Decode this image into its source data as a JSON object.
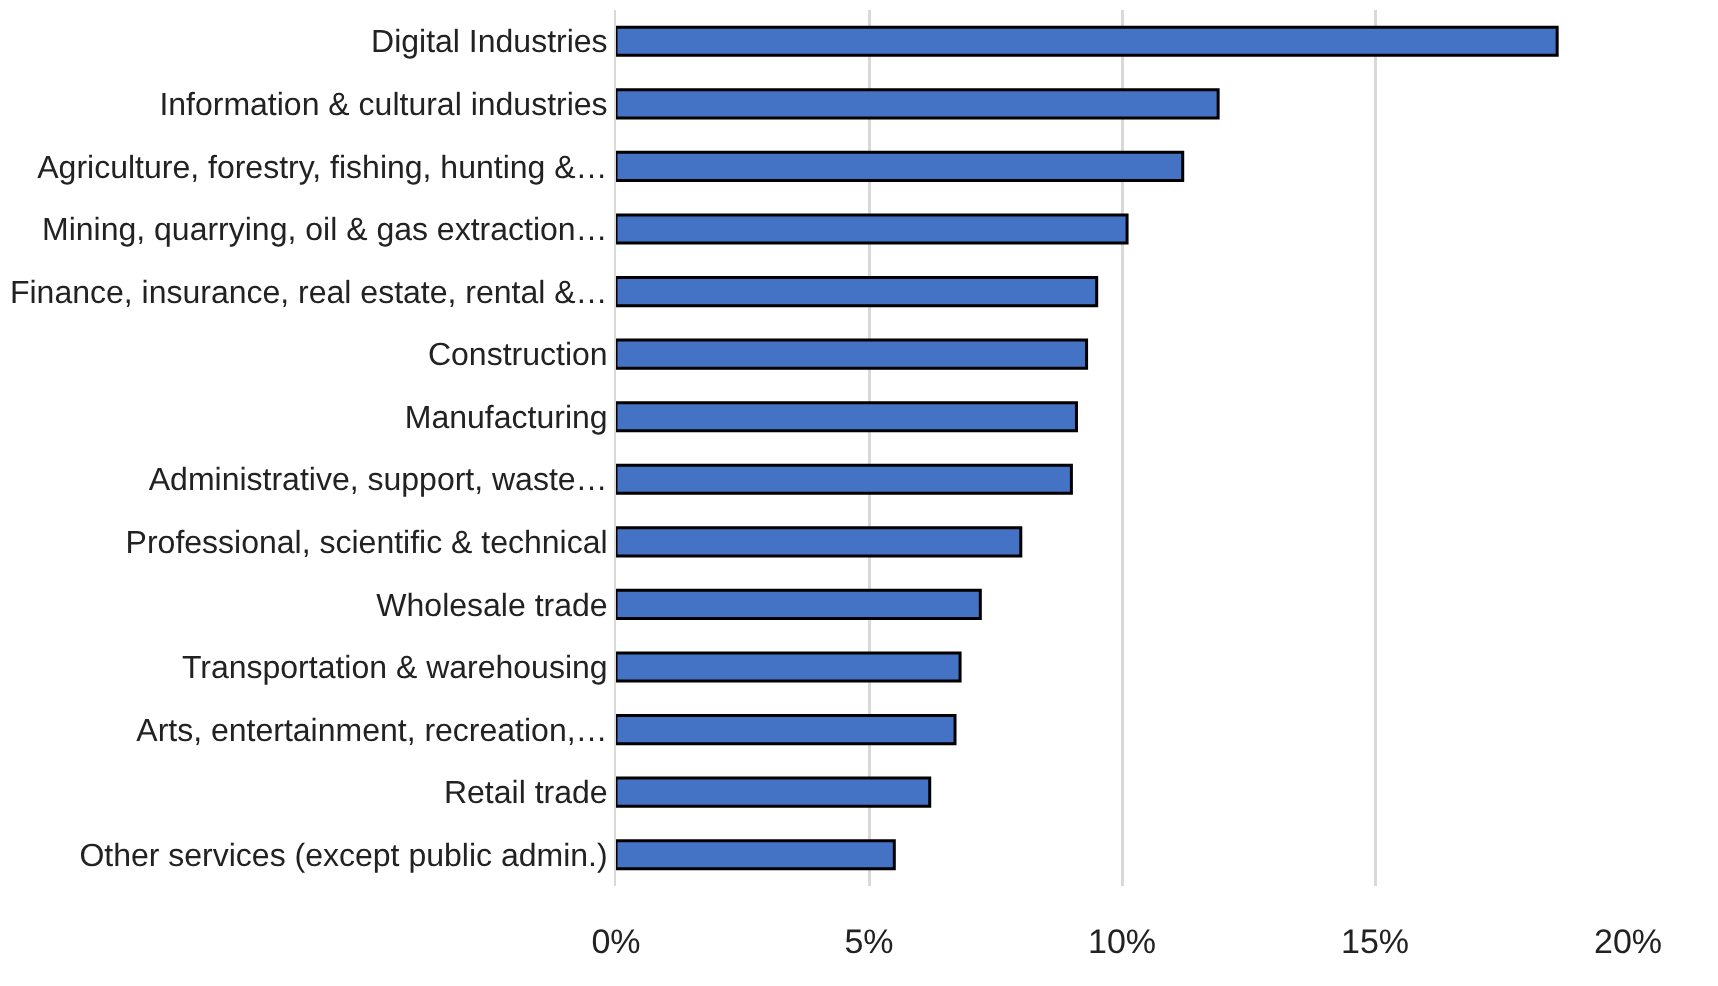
{
  "chart_data": {
    "type": "bar",
    "orientation": "horizontal",
    "categories": [
      "Digital Industries",
      "Information & cultural industries",
      "Agriculture, forestry, fishing, hunting &…",
      "Mining, quarrying, oil & gas extraction…",
      "Finance, insurance, real estate, rental &…",
      "Construction",
      "Manufacturing",
      "Administrative, support, waste…",
      "Professional, scientific & technical",
      "Wholesale trade",
      "Transportation & warehousing",
      "Arts, entertainment, recreation,…",
      "Retail trade",
      "Other services (except public admin.)"
    ],
    "values": [
      18.6,
      11.9,
      11.2,
      10.1,
      9.5,
      9.3,
      9.1,
      9.0,
      8.0,
      7.2,
      6.8,
      6.7,
      6.2,
      5.5
    ],
    "color": "#4472c4",
    "xlim": [
      0,
      20
    ],
    "xticks": [
      {
        "value": 0,
        "label": "0%"
      },
      {
        "value": 5,
        "label": "5%"
      },
      {
        "value": 10,
        "label": "10%"
      },
      {
        "value": 15,
        "label": "15%"
      },
      {
        "value": 20,
        "label": "20%"
      }
    ],
    "grid": "x"
  }
}
